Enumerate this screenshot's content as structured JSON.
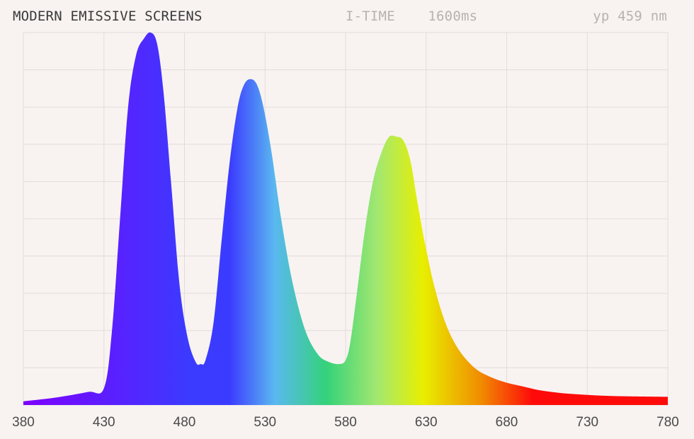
{
  "header": {
    "title": "MODERN EMISSIVE SCREENS",
    "itime_label": "I-TIME",
    "itime_value": "1600ms",
    "yp_label": "yp",
    "yp_value": "459 nm"
  },
  "chart_data": {
    "type": "area",
    "title": "MODERN EMISSIVE SCREENS",
    "xlabel": "",
    "ylabel": "",
    "xlim": [
      380,
      780
    ],
    "ylim": [
      0,
      1
    ],
    "x_ticks": [
      380,
      430,
      480,
      530,
      580,
      630,
      680,
      730,
      780
    ],
    "grid": true,
    "fill": "visible-spectrum gradient",
    "x": [
      380,
      400,
      420,
      430,
      435,
      440,
      445,
      450,
      455,
      459,
      463,
      467,
      472,
      477,
      482,
      487,
      490,
      493,
      498,
      503,
      508,
      513,
      517,
      521,
      525,
      529,
      534,
      540,
      547,
      555,
      563,
      570,
      576,
      580,
      583,
      587,
      592,
      597,
      602,
      607,
      612,
      615,
      618,
      621,
      624,
      629,
      635,
      642,
      650,
      660,
      670,
      680,
      690,
      700,
      710,
      720,
      740,
      760,
      780
    ],
    "values": [
      0.01,
      0.02,
      0.035,
      0.045,
      0.2,
      0.5,
      0.8,
      0.94,
      0.985,
      1.0,
      0.97,
      0.84,
      0.58,
      0.32,
      0.18,
      0.115,
      0.11,
      0.12,
      0.22,
      0.44,
      0.65,
      0.8,
      0.86,
      0.875,
      0.86,
      0.8,
      0.68,
      0.5,
      0.33,
      0.2,
      0.135,
      0.115,
      0.11,
      0.12,
      0.17,
      0.3,
      0.47,
      0.6,
      0.675,
      0.72,
      0.72,
      0.715,
      0.69,
      0.64,
      0.56,
      0.44,
      0.32,
      0.22,
      0.15,
      0.1,
      0.075,
      0.06,
      0.05,
      0.04,
      0.034,
      0.03,
      0.025,
      0.023,
      0.022
    ],
    "colors": {
      "violet": "#7d00ff",
      "blue": "#3b3bff",
      "cyan": "#5ab8f0",
      "green": "#34d27a",
      "lime": "#a4e870",
      "yellow": "#e8ef00",
      "orange": "#f08c00",
      "red": "#ff0a0a",
      "grid": "#e2dcda",
      "background": "#f8f3f1"
    }
  }
}
